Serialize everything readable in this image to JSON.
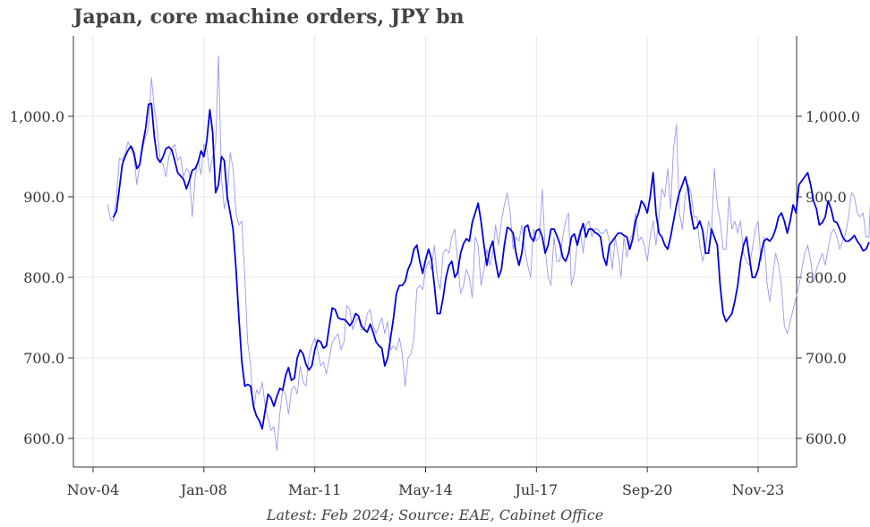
{
  "chart_data": {
    "type": "line",
    "title": "Japan, core machine orders, JPY bn",
    "source_note": "Latest: Feb 2024; Source: EAE, Cabinet Office",
    "xlabel": "",
    "ylabel": "",
    "x_ticks": [
      "Nov-04",
      "Jan-08",
      "Mar-11",
      "May-14",
      "Jul-17",
      "Sep-20",
      "Nov-23"
    ],
    "ylim": [
      570,
      1100
    ],
    "y_ticks": [
      "600.0",
      "700.0",
      "800.0",
      "900.0",
      "1,000.0"
    ],
    "grid": true,
    "dual_axis": true,
    "colors": {
      "monthly": "#9999ee",
      "average": "#0000dd",
      "grid": "#e6e6e6",
      "axis": "#333333",
      "title": "#444444"
    },
    "series": [
      {
        "name": "",
        "style": "thin",
        "start": "2005-04",
        "values": [
          890,
          872,
          870,
          900,
          948,
          945,
          955,
          968,
          960,
          950,
          915,
          940,
          960,
          975,
          985,
          1048,
          1010,
          985,
          945,
          940,
          925,
          950,
          960,
          965,
          945,
          950,
          925,
          935,
          930,
          875,
          925,
          945,
          928,
          965,
          960,
          930,
          950,
          965,
          1075,
          925,
          885,
          900,
          955,
          935,
          880,
          865,
          870,
          800,
          720,
          690,
          635,
          660,
          655,
          670,
          640,
          625,
          610,
          615,
          585,
          630,
          660,
          655,
          630,
          660,
          665,
          655,
          690,
          670,
          665,
          700,
          715,
          725,
          710,
          690,
          695,
          680,
          700,
          720,
          725,
          730,
          710,
          720,
          765,
          760,
          735,
          745,
          750,
          735,
          735,
          755,
          760,
          740,
          730,
          740,
          750,
          730,
          745,
          710,
          715,
          710,
          725,
          705,
          665,
          700,
          705,
          725,
          785,
          790,
          785,
          810,
          820,
          810,
          840,
          800,
          785,
          830,
          835,
          830,
          850,
          860,
          820,
          780,
          790,
          810,
          800,
          775,
          850,
          840,
          790,
          810,
          835,
          815,
          830,
          865,
          840,
          870,
          890,
          905,
          880,
          835,
          850,
          845,
          865,
          835,
          815,
          800,
          860,
          845,
          850,
          910,
          835,
          800,
          790,
          850,
          820,
          820,
          850,
          870,
          880,
          790,
          805,
          845,
          860,
          830,
          865,
          870,
          850,
          860,
          860,
          855,
          855,
          860,
          845,
          810,
          850,
          830,
          800,
          850,
          825,
          845,
          855,
          880,
          845,
          850,
          840,
          820,
          850,
          870,
          840,
          875,
          910,
          900,
          935,
          885,
          960,
          990,
          880,
          860,
          900,
          915,
          905,
          875,
          875,
          840,
          820,
          835,
          870,
          855,
          935,
          890,
          870,
          835,
          835,
          900,
          860,
          870,
          855,
          870,
          830,
          820,
          815,
          835,
          860,
          870,
          820,
          850,
          795,
          770,
          800,
          830,
          815,
          790,
          740,
          730,
          745,
          760,
          775,
          790,
          810,
          830,
          840,
          820,
          795,
          810,
          820,
          830,
          815,
          835,
          855,
          860,
          850,
          835,
          845,
          855,
          875,
          905,
          900,
          880,
          875,
          880,
          850,
          850,
          940,
          945,
          925,
          945,
          935,
          930,
          905,
          875,
          875,
          850,
          845,
          860,
          920,
          905,
          870,
          890,
          870,
          885,
          865,
          850,
          840,
          845,
          865,
          855,
          850,
          860,
          845,
          840,
          830,
          825,
          845,
          885
        ]
      },
      {
        "name": "",
        "style": "thick",
        "start": "2005-06",
        "values": [
          875,
          882,
          910,
          940,
          950,
          958,
          963,
          955,
          935,
          940,
          965,
          985,
          1015,
          1016,
          975,
          948,
          943,
          950,
          960,
          962,
          958,
          945,
          930,
          926,
          922,
          910,
          920,
          933,
          935,
          943,
          957,
          950,
          970,
          1008,
          980,
          905,
          915,
          950,
          945,
          900,
          880,
          860,
          810,
          750,
          695,
          665,
          667,
          665,
          640,
          628,
          622,
          612,
          635,
          655,
          650,
          640,
          652,
          662,
          660,
          678,
          688,
          672,
          675,
          700,
          710,
          705,
          692,
          685,
          690,
          710,
          722,
          720,
          712,
          715,
          740,
          762,
          760,
          750,
          748,
          748,
          745,
          740,
          745,
          755,
          752,
          740,
          735,
          732,
          742,
          732,
          720,
          715,
          712,
          690,
          700,
          725,
          750,
          780,
          790,
          790,
          795,
          810,
          818,
          835,
          840,
          820,
          805,
          822,
          835,
          823,
          790,
          755,
          755,
          775,
          800,
          815,
          820,
          800,
          806,
          830,
          842,
          848,
          845,
          868,
          880,
          892,
          870,
          840,
          815,
          835,
          845,
          820,
          800,
          810,
          840,
          862,
          860,
          855,
          830,
          815,
          830,
          862,
          865,
          850,
          845,
          858,
          860,
          850,
          830,
          840,
          860,
          860,
          852,
          842,
          825,
          820,
          830,
          850,
          854,
          840,
          855,
          867,
          850,
          860,
          860,
          856,
          854,
          850,
          825,
          815,
          840,
          845,
          850,
          855,
          855,
          852,
          850,
          835,
          848,
          870,
          880,
          895,
          890,
          880,
          900,
          930,
          880,
          855,
          850,
          840,
          835,
          850,
          870,
          890,
          905,
          915,
          925,
          910,
          880,
          860,
          862,
          870,
          858,
          830,
          830,
          860,
          850,
          840,
          790,
          755,
          745,
          750,
          755,
          770,
          790,
          820,
          840,
          850,
          825,
          800,
          800,
          810,
          830,
          845,
          848,
          845,
          850,
          860,
          875,
          880,
          870,
          855,
          870,
          890,
          880,
          915,
          920,
          925,
          930,
          915,
          895,
          885,
          865,
          868,
          875,
          895,
          885,
          870,
          868,
          860,
          850,
          845,
          845,
          848,
          852,
          845,
          840,
          833,
          835,
          843
        ]
      }
    ]
  }
}
